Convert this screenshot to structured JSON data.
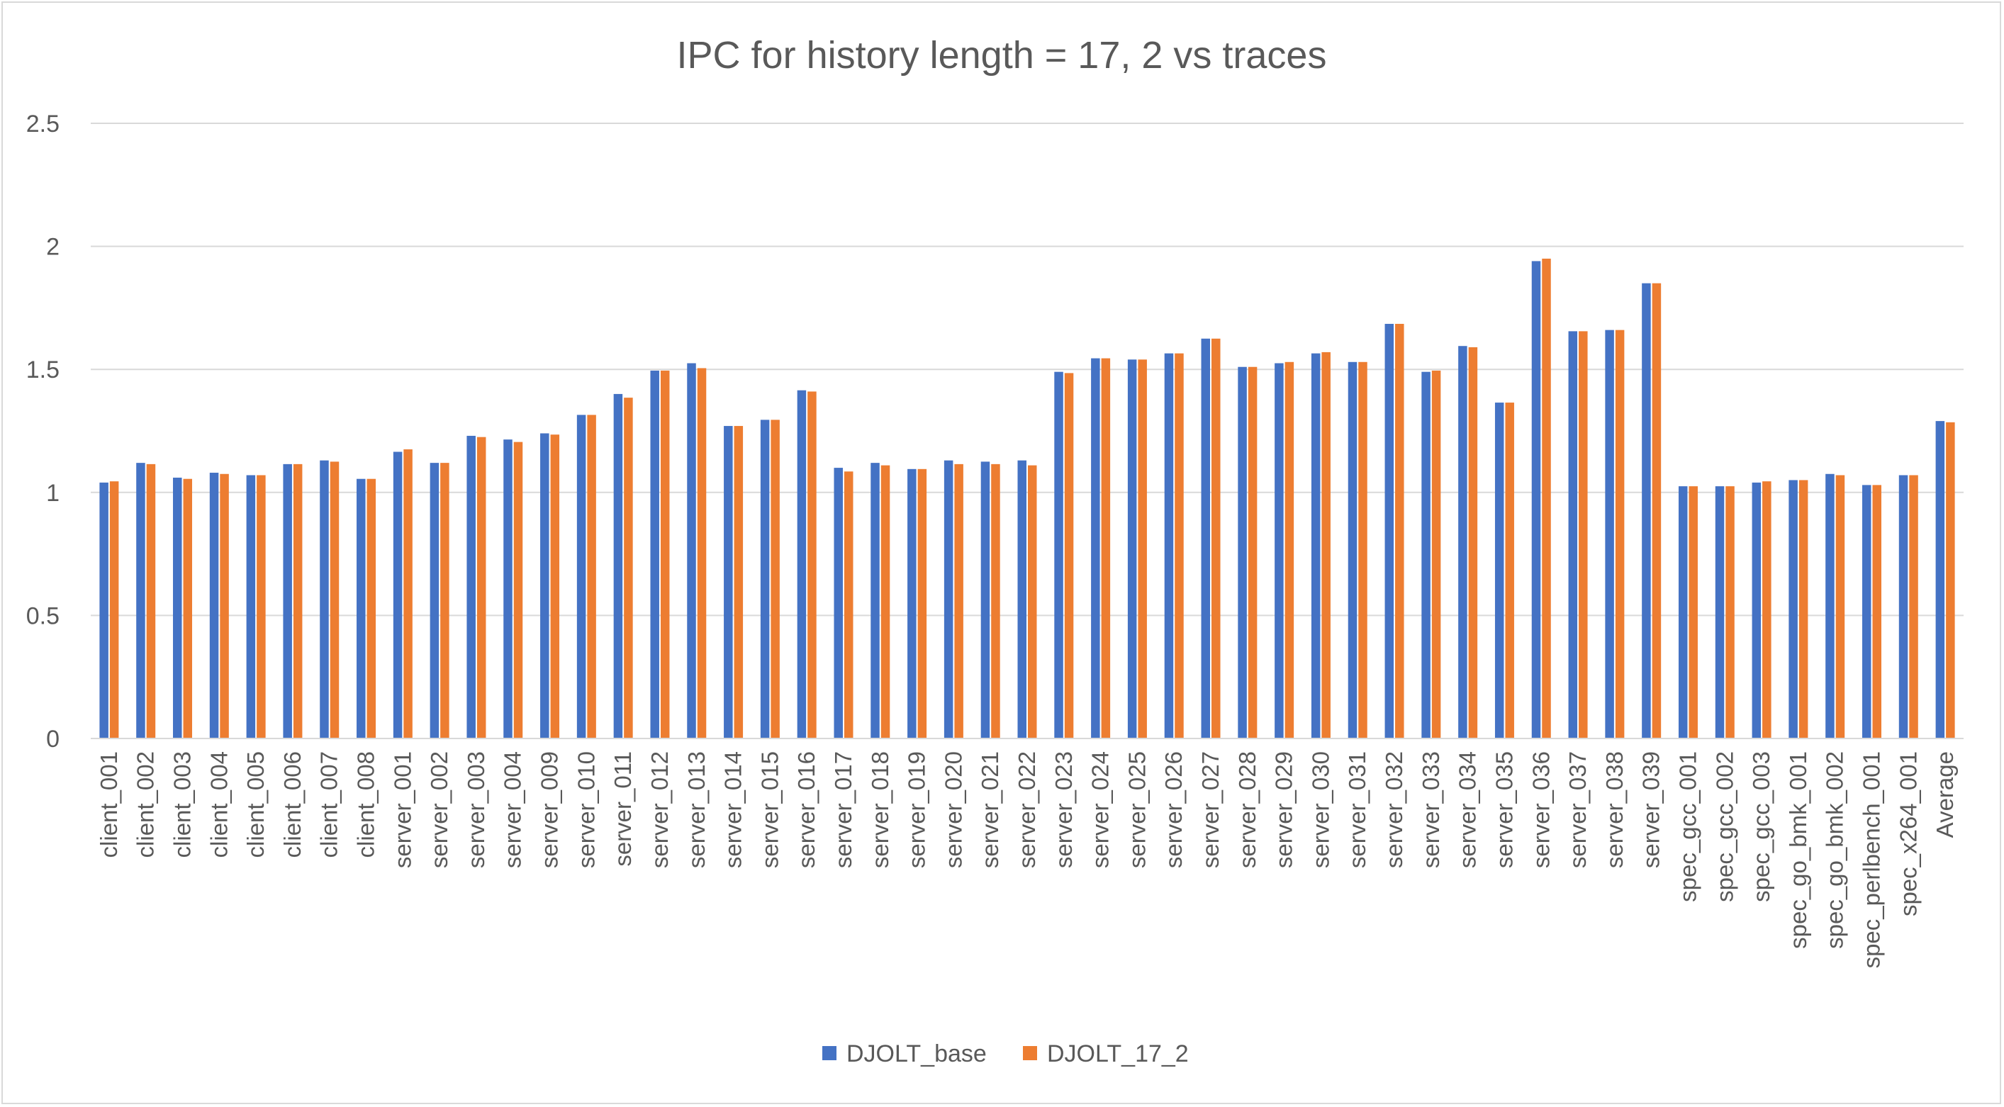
{
  "chart_data": {
    "type": "bar",
    "title": "IPC for history length = 17, 2 vs traces",
    "xlabel": "",
    "ylabel": "",
    "ylim": [
      0,
      2.5
    ],
    "yticks": [
      "0",
      "0.5",
      "1",
      "1.5",
      "2",
      "2.5"
    ],
    "grid": true,
    "legend_position": "bottom",
    "categories": [
      "client_001",
      "client_002",
      "client_003",
      "client_004",
      "client_005",
      "client_006",
      "client_007",
      "client_008",
      "server_001",
      "server_002",
      "server_003",
      "server_004",
      "server_009",
      "server_010",
      "server_011",
      "server_012",
      "server_013",
      "server_014",
      "server_015",
      "server_016",
      "server_017",
      "server_018",
      "server_019",
      "server_020",
      "server_021",
      "server_022",
      "server_023",
      "server_024",
      "server_025",
      "server_026",
      "server_027",
      "server_028",
      "server_029",
      "server_030",
      "server_031",
      "server_032",
      "server_033",
      "server_034",
      "server_035",
      "server_036",
      "server_037",
      "server_038",
      "server_039",
      "spec_gcc_001",
      "spec_gcc_002",
      "spec_gcc_003",
      "spec_go_bmk_001",
      "spec_go_bmk_002",
      "spec_perlbench_001",
      "spec_x264_001",
      "Average"
    ],
    "series": [
      {
        "name": "DJOLT_base",
        "color": "#4472C4",
        "values": [
          1.04,
          1.12,
          1.06,
          1.08,
          1.07,
          1.115,
          1.13,
          1.055,
          1.165,
          1.12,
          1.23,
          1.215,
          1.24,
          1.315,
          1.4,
          1.495,
          1.525,
          1.27,
          1.295,
          1.415,
          1.1,
          1.12,
          1.095,
          1.13,
          1.125,
          1.13,
          1.49,
          1.545,
          1.54,
          1.565,
          1.625,
          1.51,
          1.525,
          1.565,
          1.53,
          1.685,
          1.49,
          1.595,
          1.365,
          1.94,
          1.655,
          1.66,
          1.85,
          1.025,
          1.025,
          1.04,
          1.05,
          1.075,
          1.03,
          1.07,
          1.29
        ]
      },
      {
        "name": "DJOLT_17_2",
        "color": "#ED7D31",
        "values": [
          1.045,
          1.115,
          1.055,
          1.075,
          1.07,
          1.115,
          1.125,
          1.055,
          1.175,
          1.12,
          1.225,
          1.205,
          1.235,
          1.315,
          1.385,
          1.495,
          1.505,
          1.27,
          1.295,
          1.41,
          1.085,
          1.11,
          1.095,
          1.115,
          1.115,
          1.11,
          1.485,
          1.545,
          1.54,
          1.565,
          1.625,
          1.51,
          1.53,
          1.57,
          1.53,
          1.685,
          1.495,
          1.59,
          1.365,
          1.95,
          1.655,
          1.66,
          1.85,
          1.025,
          1.025,
          1.045,
          1.05,
          1.07,
          1.03,
          1.07,
          1.285
        ]
      }
    ]
  }
}
